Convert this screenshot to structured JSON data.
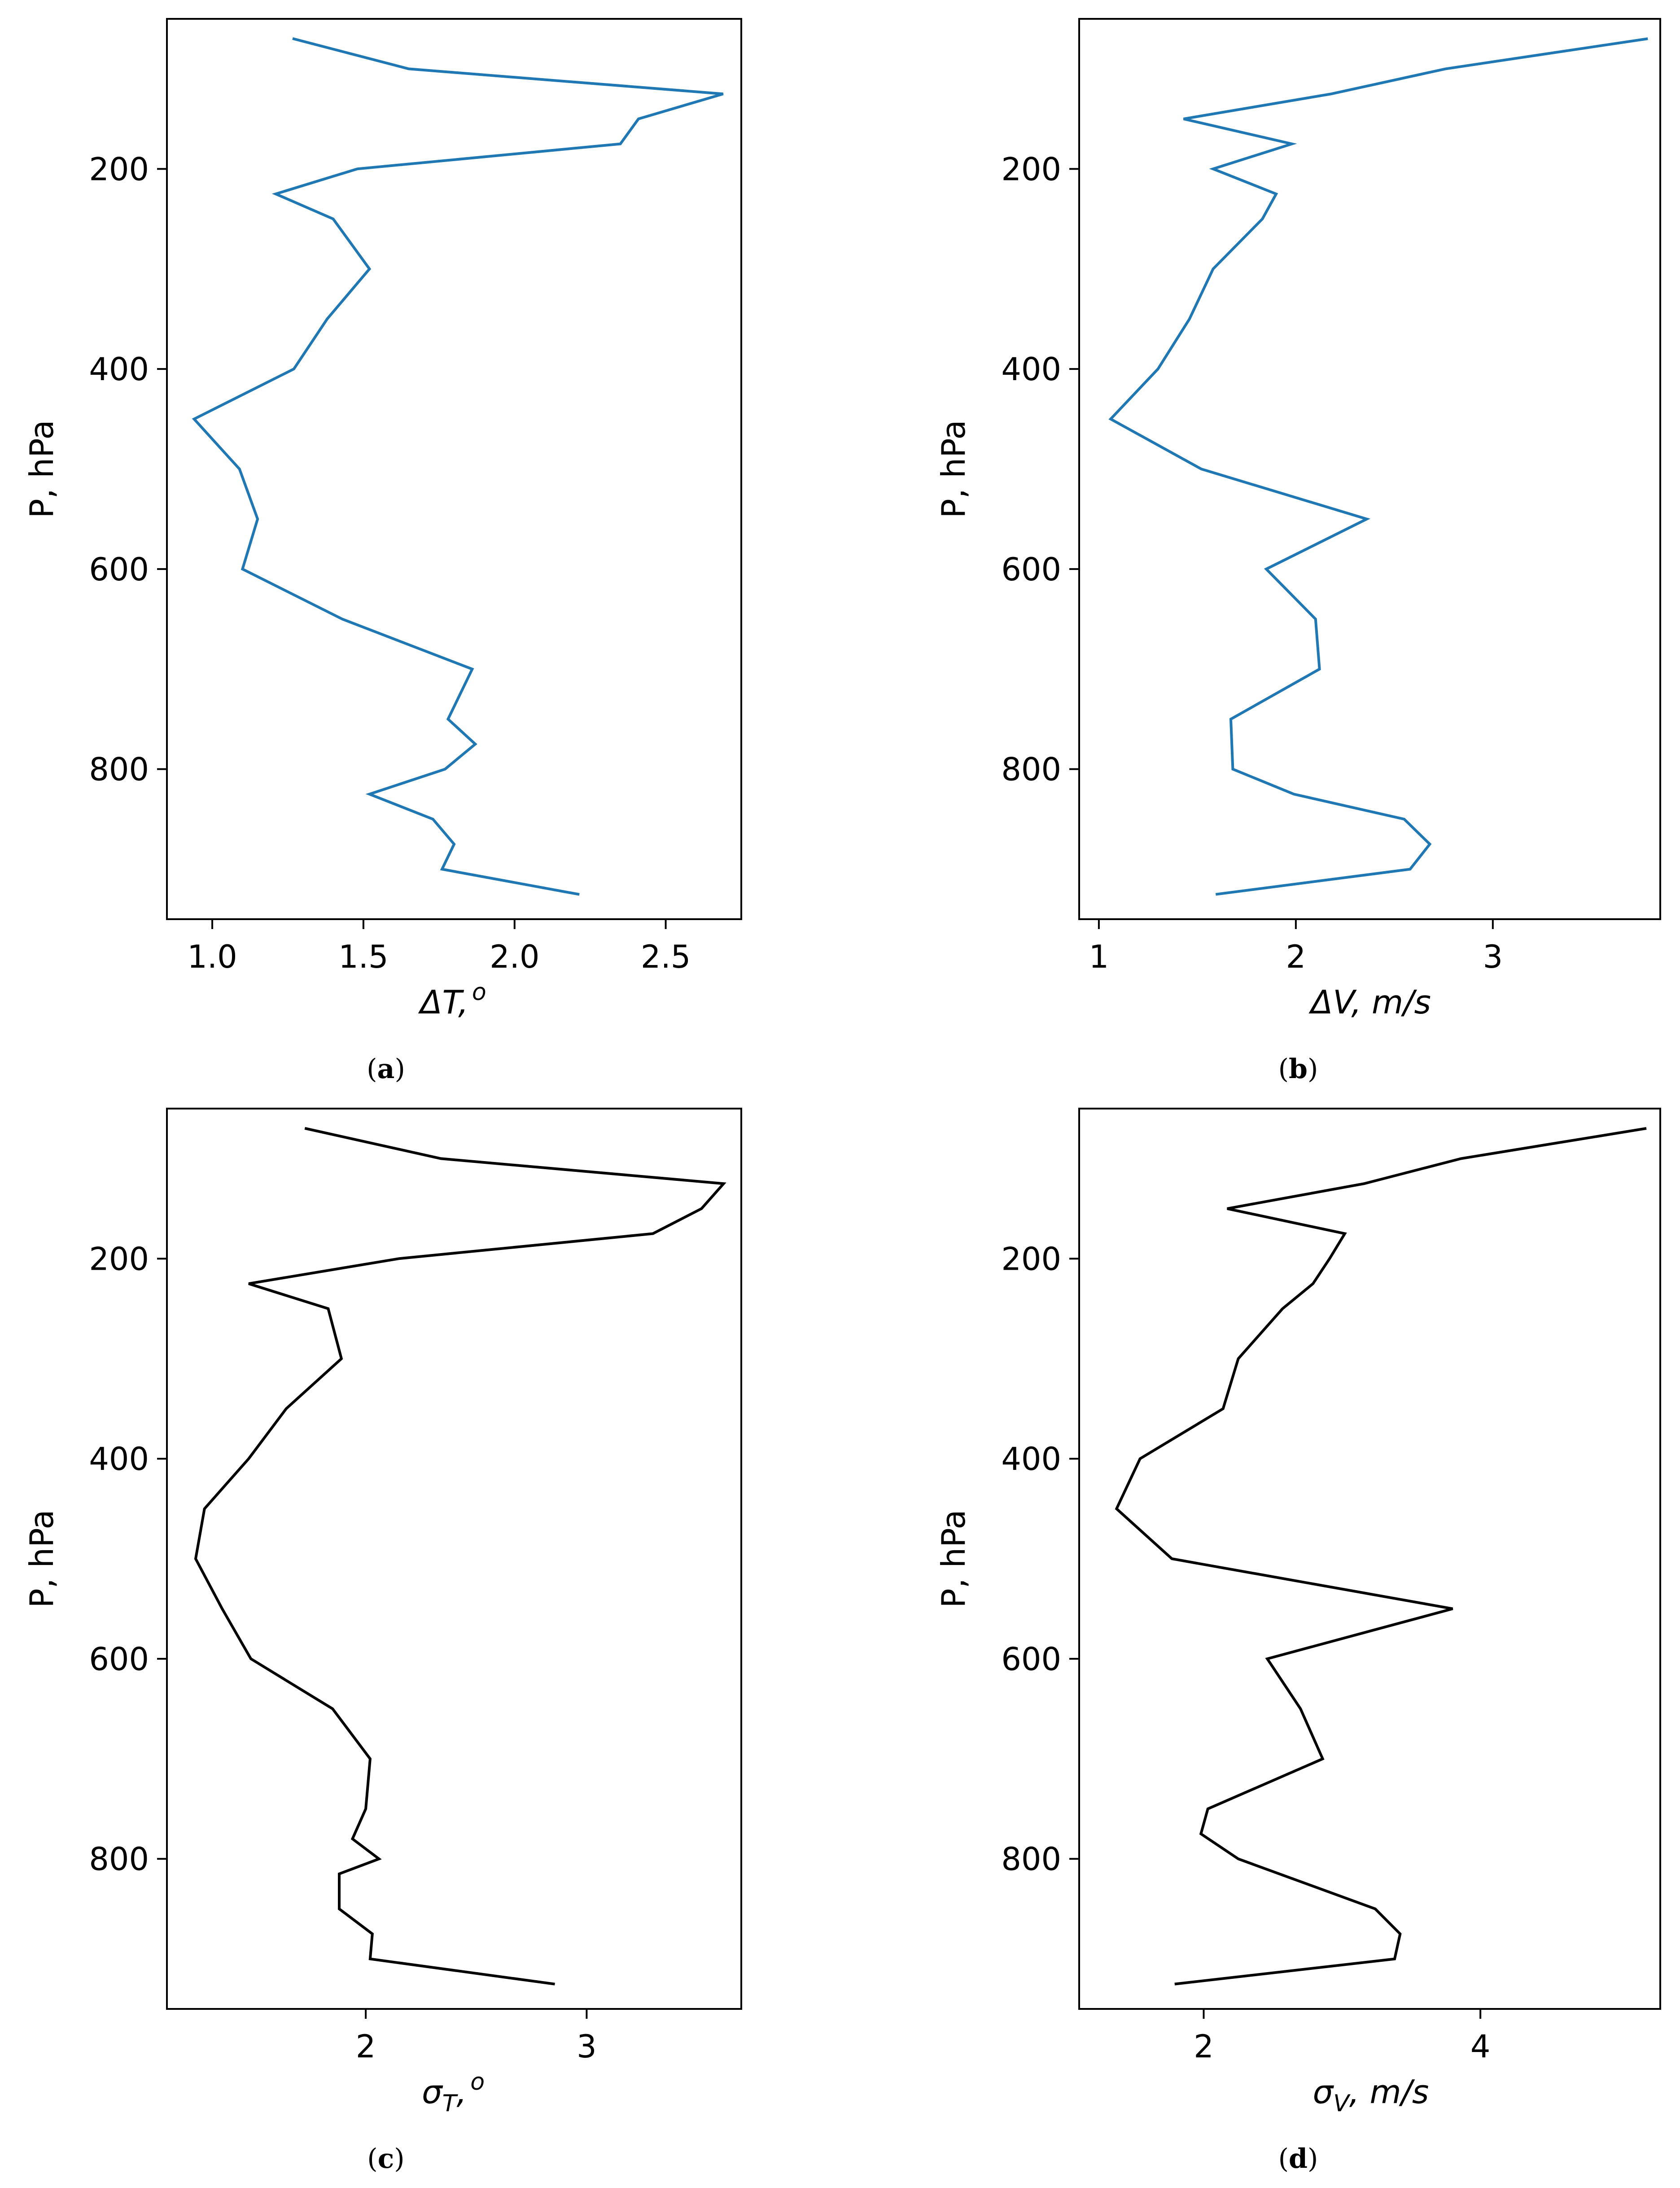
{
  "figure": {
    "panels": [
      {
        "caption_prefix": "(",
        "caption_letter": "a",
        "caption_suffix": ")",
        "xlabel_prefix": "ΔT,",
        "xlabel_sup": "o",
        "xlabel_sub": "",
        "ylabel": "P, hPa",
        "color": "#1f77b4"
      },
      {
        "caption_prefix": "(",
        "caption_letter": "b",
        "caption_suffix": ")",
        "xlabel_prefix": "ΔV, m/s",
        "xlabel_sup": "",
        "xlabel_sub": "",
        "ylabel": "P, hPa",
        "color": "#1f77b4"
      },
      {
        "caption_prefix": "(",
        "caption_letter": "c",
        "caption_suffix": ")",
        "xlabel_prefix": "σ",
        "xlabel_sub": "T",
        "xlabel_after": ",",
        "xlabel_sup": "o",
        "ylabel": "P, hPa",
        "color": "#000000"
      },
      {
        "caption_prefix": "(",
        "caption_letter": "d",
        "caption_suffix": ")",
        "xlabel_prefix": "σ",
        "xlabel_sub": "V",
        "xlabel_after": ", m/s",
        "xlabel_sup": "",
        "ylabel": "P, hPa",
        "color": "#000000"
      }
    ]
  },
  "chart_data": [
    {
      "type": "line",
      "xlabel": "ΔT, o",
      "ylabel": "P, hPa",
      "xlim": [
        0.85,
        2.75
      ],
      "ylim": [
        950,
        50
      ],
      "y_inverted": true,
      "xticks": [
        "1.0",
        "1.5",
        "2.0",
        "2.5"
      ],
      "yticks": [
        "200",
        "400",
        "600",
        "800"
      ],
      "xtick_values": [
        1.0,
        1.5,
        2.0,
        2.5
      ],
      "ytick_values": [
        200,
        400,
        600,
        800
      ],
      "series": [
        {
          "color": "#1f77b4",
          "x": [
            1.27,
            1.65,
            2.69,
            2.41,
            2.35,
            1.48,
            1.21,
            1.4,
            1.52,
            1.38,
            1.27,
            0.94,
            1.09,
            1.15,
            1.1,
            1.43,
            1.86,
            1.78,
            1.87,
            1.77,
            1.52,
            1.73,
            1.8,
            1.76,
            2.21
          ],
          "y": [
            70,
            100,
            125,
            150,
            175,
            200,
            225,
            250,
            300,
            350,
            400,
            450,
            500,
            550,
            600,
            650,
            700,
            750,
            775,
            800,
            825,
            850,
            875,
            900,
            925
          ]
        }
      ]
    },
    {
      "type": "line",
      "xlabel": "ΔV, m/s",
      "ylabel": "P, hPa",
      "xlim": [
        0.9,
        3.85
      ],
      "ylim": [
        950,
        50
      ],
      "y_inverted": true,
      "xticks": [
        "1",
        "2",
        "3"
      ],
      "yticks": [
        "200",
        "400",
        "600",
        "800"
      ],
      "xtick_values": [
        1,
        2,
        3
      ],
      "ytick_values": [
        200,
        400,
        600,
        800
      ],
      "series": [
        {
          "color": "#1f77b4",
          "x": [
            3.78,
            2.76,
            2.18,
            1.43,
            1.98,
            1.58,
            1.9,
            1.83,
            1.58,
            1.46,
            1.3,
            1.06,
            1.52,
            2.36,
            1.85,
            2.1,
            2.12,
            1.67,
            1.68,
            1.99,
            2.55,
            2.68,
            2.58,
            1.6
          ],
          "y": [
            70,
            100,
            125,
            150,
            175,
            200,
            225,
            250,
            300,
            350,
            400,
            450,
            500,
            550,
            600,
            650,
            700,
            750,
            800,
            825,
            850,
            875,
            900,
            925
          ]
        }
      ]
    },
    {
      "type": "line",
      "xlabel": "σT, o",
      "ylabel": "P, hPa",
      "xlim": [
        1.1,
        3.7
      ],
      "ylim": [
        950,
        50
      ],
      "y_inverted": true,
      "xticks": [
        "2",
        "3"
      ],
      "yticks": [
        "200",
        "400",
        "600",
        "800"
      ],
      "xtick_values": [
        2,
        3
      ],
      "ytick_values": [
        200,
        400,
        600,
        800
      ],
      "series": [
        {
          "color": "#000000",
          "x": [
            1.73,
            2.34,
            3.62,
            3.52,
            3.3,
            2.15,
            1.47,
            1.83,
            1.89,
            1.64,
            1.47,
            1.27,
            1.23,
            1.35,
            1.48,
            1.85,
            2.02,
            2.0,
            1.94,
            2.06,
            1.88,
            1.88,
            2.03,
            2.02,
            2.85
          ],
          "y": [
            70,
            100,
            125,
            150,
            175,
            200,
            225,
            250,
            300,
            350,
            400,
            450,
            500,
            550,
            600,
            650,
            700,
            750,
            780,
            800,
            815,
            850,
            875,
            900,
            925
          ]
        }
      ]
    },
    {
      "type": "line",
      "xlabel": "σV, m/s",
      "ylabel": "P, hPa",
      "xlim": [
        1.1,
        5.3
      ],
      "ylim": [
        950,
        50
      ],
      "y_inverted": true,
      "xticks": [
        "2",
        "4"
      ],
      "yticks": [
        "200",
        "400",
        "600",
        "800"
      ],
      "xtick_values": [
        2,
        4
      ],
      "ytick_values": [
        200,
        400,
        600,
        800
      ],
      "series": [
        {
          "color": "#000000",
          "x": [
            5.19,
            3.86,
            3.16,
            2.17,
            3.02,
            2.91,
            2.79,
            2.57,
            2.25,
            2.14,
            1.54,
            1.37,
            1.77,
            3.8,
            2.46,
            2.7,
            2.86,
            2.03,
            1.98,
            2.25,
            3.24,
            3.42,
            3.38,
            1.8
          ],
          "y": [
            70,
            100,
            125,
            150,
            175,
            200,
            225,
            250,
            300,
            350,
            400,
            450,
            500,
            550,
            600,
            650,
            700,
            750,
            775,
            800,
            850,
            875,
            900,
            925
          ]
        }
      ]
    }
  ]
}
